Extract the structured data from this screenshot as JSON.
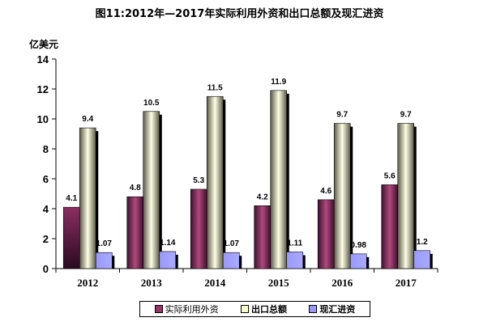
{
  "title": "图11:2012年—2017年实际利用外资和出口总额及现汇进资",
  "chart_data": {
    "type": "bar",
    "title": "图11:2012年—2017年实际利用外资和出口总额及现汇进资",
    "ylabel": "亿美元",
    "xlabel": "",
    "ylim": [
      0,
      14
    ],
    "yticks": [
      0,
      2,
      4,
      6,
      8,
      10,
      12,
      14
    ],
    "categories": [
      "2012",
      "2013",
      "2014",
      "2015",
      "2016",
      "2017"
    ],
    "series": [
      {
        "name": "实际利用外资",
        "values": [
          4.1,
          4.8,
          5.3,
          4.2,
          4.6,
          5.6
        ],
        "labels": [
          "4.1",
          "4.8",
          "5.3",
          "4.2",
          "4.6",
          "5.6"
        ],
        "color": "#993366"
      },
      {
        "name": "出口总额",
        "values": [
          9.4,
          10.5,
          11.5,
          11.9,
          9.7,
          9.7
        ],
        "labels": [
          "9.4",
          "10.5",
          "11.5",
          "11.9",
          "9.7",
          "9.7"
        ],
        "color": "#FFFFCC"
      },
      {
        "name": "现汇进资",
        "values": [
          1.07,
          1.14,
          1.07,
          1.11,
          0.98,
          1.2
        ],
        "labels": [
          "1.07",
          "1.14",
          "1.07",
          "1.11",
          "0.98",
          "1.2"
        ],
        "color": "#9999FF"
      }
    ],
    "grid": false,
    "legend": "bottom"
  }
}
